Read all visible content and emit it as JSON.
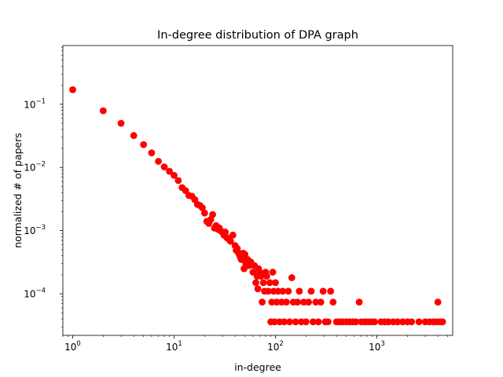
{
  "chart_data": {
    "type": "scatter",
    "title": "In-degree distribution of DPA graph",
    "xlabel": "in-degree",
    "ylabel": "normalized # of papers",
    "xscale": "log",
    "yscale": "log",
    "xlim": [
      0.8,
      5600
    ],
    "ylim": [
      2.2e-05,
      0.85
    ],
    "grid": false,
    "marker_color": "#ff0000",
    "x_ticks": [
      {
        "base": "10",
        "exp": "0",
        "value": 1
      },
      {
        "base": "10",
        "exp": "1",
        "value": 10
      },
      {
        "base": "10",
        "exp": "2",
        "value": 100
      },
      {
        "base": "10",
        "exp": "3",
        "value": 1000
      }
    ],
    "y_ticks": [
      {
        "base": "10",
        "exp": "−4",
        "value": 0.0001
      },
      {
        "base": "10",
        "exp": "−3",
        "value": 0.001
      },
      {
        "base": "10",
        "exp": "−2",
        "value": 0.01
      },
      {
        "base": "10",
        "exp": "−1",
        "value": 0.1
      }
    ],
    "points": [
      [
        1,
        0.17
      ],
      [
        2,
        0.079
      ],
      [
        3,
        0.05
      ],
      [
        4,
        0.032
      ],
      [
        5,
        0.023
      ],
      [
        6,
        0.017
      ],
      [
        7,
        0.0125
      ],
      [
        8,
        0.0102
      ],
      [
        9,
        0.0087
      ],
      [
        10,
        0.0075
      ],
      [
        11,
        0.0062
      ],
      [
        12,
        0.0048
      ],
      [
        13,
        0.0043
      ],
      [
        14,
        0.0036
      ],
      [
        15,
        0.0035
      ],
      [
        16,
        0.0031
      ],
      [
        17,
        0.0026
      ],
      [
        18,
        0.0025
      ],
      [
        19,
        0.0023
      ],
      [
        20,
        0.0019
      ],
      [
        21,
        0.0014
      ],
      [
        22,
        0.0013
      ],
      [
        23,
        0.0015
      ],
      [
        24,
        0.0018
      ],
      [
        25,
        0.0011
      ],
      [
        26,
        0.0012
      ],
      [
        27,
        0.00105
      ],
      [
        28,
        0.0011
      ],
      [
        29,
        0.00098
      ],
      [
        30,
        0.00095
      ],
      [
        31,
        0.00085
      ],
      [
        32,
        0.00095
      ],
      [
        33,
        0.00078
      ],
      [
        34,
        0.00075
      ],
      [
        36,
        0.00068
      ],
      [
        38,
        0.00085
      ],
      [
        40,
        0.00058
      ],
      [
        41,
        0.00049
      ],
      [
        42,
        0.00052
      ],
      [
        43,
        0.00045
      ],
      [
        44,
        0.00042
      ],
      [
        45,
        0.00038
      ],
      [
        46,
        0.00035
      ],
      [
        47,
        0.00037
      ],
      [
        48,
        0.00044
      ],
      [
        49,
        0.00025
      ],
      [
        50,
        0.00042
      ],
      [
        51,
        0.0003
      ],
      [
        53,
        0.00035
      ],
      [
        55,
        0.00028
      ],
      [
        57,
        0.00032
      ],
      [
        60,
        0.00022
      ],
      [
        62,
        0.00028
      ],
      [
        64,
        0.00015
      ],
      [
        66,
        0.00019
      ],
      [
        67,
        0.00012
      ],
      [
        68,
        0.00025
      ],
      [
        70,
        0.00022
      ],
      [
        72,
        0.00019
      ],
      [
        74,
        7.4e-05
      ],
      [
        76,
        0.00015
      ],
      [
        78,
        0.00011
      ],
      [
        80,
        0.00022
      ],
      [
        82,
        0.00019
      ],
      [
        85,
        0.00011
      ],
      [
        88,
        0.00015
      ],
      [
        90,
        3.6e-05
      ],
      [
        92,
        7.4e-05
      ],
      [
        94,
        0.00022
      ],
      [
        96,
        0.00011
      ],
      [
        98,
        3.6e-05
      ],
      [
        100,
        0.00015
      ],
      [
        103,
        7.4e-05
      ],
      [
        106,
        0.00011
      ],
      [
        110,
        3.6e-05
      ],
      [
        115,
        7.4e-05
      ],
      [
        118,
        0.00011
      ],
      [
        122,
        3.6e-05
      ],
      [
        128,
        7.4e-05
      ],
      [
        134,
        0.00011
      ],
      [
        138,
        3.6e-05
      ],
      [
        145,
        0.00018
      ],
      [
        150,
        7.4e-05
      ],
      [
        158,
        3.6e-05
      ],
      [
        165,
        7.4e-05
      ],
      [
        172,
        0.00011
      ],
      [
        180,
        3.6e-05
      ],
      [
        190,
        7.4e-05
      ],
      [
        200,
        3.6e-05
      ],
      [
        212,
        7.4e-05
      ],
      [
        225,
        0.00011
      ],
      [
        235,
        3.6e-05
      ],
      [
        250,
        7.4e-05
      ],
      [
        265,
        3.6e-05
      ],
      [
        280,
        7.4e-05
      ],
      [
        295,
        0.00011
      ],
      [
        310,
        3.6e-05
      ],
      [
        330,
        3.6e-05
      ],
      [
        350,
        0.00011
      ],
      [
        370,
        7.4e-05
      ],
      [
        400,
        3.6e-05
      ],
      [
        430,
        3.6e-05
      ],
      [
        460,
        3.6e-05
      ],
      [
        500,
        3.6e-05
      ],
      [
        540,
        3.6e-05
      ],
      [
        580,
        3.6e-05
      ],
      [
        620,
        3.6e-05
      ],
      [
        670,
        7.4e-05
      ],
      [
        700,
        3.6e-05
      ],
      [
        760,
        3.6e-05
      ],
      [
        820,
        3.6e-05
      ],
      [
        880,
        3.6e-05
      ],
      [
        950,
        3.6e-05
      ],
      [
        1100,
        3.6e-05
      ],
      [
        1200,
        3.6e-05
      ],
      [
        1300,
        3.6e-05
      ],
      [
        1450,
        3.6e-05
      ],
      [
        1600,
        3.6e-05
      ],
      [
        1800,
        3.6e-05
      ],
      [
        2000,
        3.6e-05
      ],
      [
        2200,
        3.6e-05
      ],
      [
        2600,
        3.6e-05
      ],
      [
        3000,
        3.6e-05
      ],
      [
        3300,
        3.6e-05
      ],
      [
        3600,
        3.6e-05
      ],
      [
        3900,
        3.6e-05
      ],
      [
        4000,
        7.4e-05
      ],
      [
        4200,
        3.6e-05
      ],
      [
        4450,
        3.6e-05
      ]
    ]
  }
}
